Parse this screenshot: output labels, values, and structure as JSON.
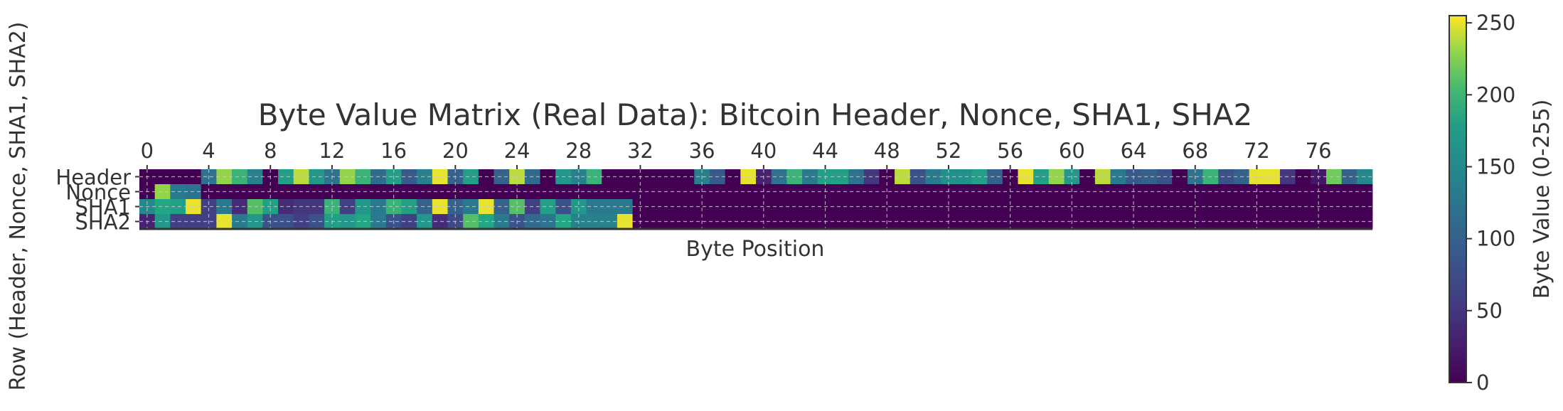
{
  "chart_data": {
    "type": "heatmap",
    "title": "Byte Value Matrix (Real Data): Bitcoin Header, Nonce, SHA1, SHA2",
    "xlabel": "Byte Position",
    "ylabel": "Row (Header, Nonce, SHA1, SHA2)",
    "rows": [
      "Header",
      "Nonce",
      "SHA1",
      "SHA2"
    ],
    "x_ticks": [
      "0",
      "4",
      "8",
      "12",
      "16",
      "20",
      "24",
      "28",
      "32",
      "36",
      "40",
      "44",
      "48",
      "52",
      "56",
      "60",
      "64",
      "68",
      "72",
      "76"
    ],
    "colorbar": {
      "label": "Byte Value (0-255)",
      "ticks": [
        "0",
        "50",
        "100",
        "150",
        "200",
        "250"
      ],
      "range": [
        0,
        255
      ],
      "colormap": "viridis"
    },
    "grid": true,
    "num_columns": 80,
    "values": [
      [
        0,
        0,
        0,
        0,
        120,
        230,
        200,
        140,
        0,
        180,
        240,
        170,
        120,
        230,
        200,
        110,
        180,
        90,
        140,
        250,
        100,
        180,
        0,
        100,
        240,
        110,
        0,
        170,
        140,
        200,
        0,
        0,
        0,
        0,
        0,
        0,
        140,
        90,
        0,
        250,
        30,
        120,
        200,
        130,
        180,
        180,
        120,
        50,
        0,
        240,
        80,
        130,
        160,
        160,
        180,
        100,
        0,
        250,
        180,
        230,
        170,
        0,
        240,
        130,
        90,
        100,
        80,
        0,
        120,
        200,
        80,
        100,
        250,
        250,
        50,
        0,
        20,
        220,
        100,
        150
      ],
      [
        0,
        230,
        130,
        120,
        0,
        0,
        0,
        0,
        0,
        0,
        0,
        0,
        0,
        0,
        0,
        0,
        0,
        0,
        0,
        0,
        0,
        0,
        0,
        0,
        0,
        0,
        0,
        0,
        0,
        0,
        0,
        0,
        0,
        0,
        0,
        0,
        0,
        0,
        0,
        0,
        0,
        0,
        0,
        0,
        0,
        0,
        0,
        0,
        0,
        0,
        0,
        0,
        0,
        0,
        0,
        0,
        0,
        0,
        0,
        0,
        0,
        0,
        0,
        0,
        0,
        0,
        0,
        0,
        0,
        0,
        0,
        0,
        0,
        0,
        0,
        0,
        0,
        0,
        0,
        0
      ],
      [
        150,
        190,
        180,
        250,
        60,
        130,
        40,
        210,
        180,
        40,
        50,
        50,
        200,
        60,
        170,
        130,
        200,
        180,
        100,
        250,
        100,
        130,
        250,
        100,
        210,
        60,
        180,
        80,
        170,
        130,
        130,
        130,
        0,
        0,
        0,
        0,
        0,
        0,
        0,
        0,
        0,
        0,
        0,
        0,
        0,
        0,
        0,
        0,
        0,
        0,
        0,
        0,
        0,
        0,
        0,
        0,
        0,
        0,
        0,
        0,
        0,
        0,
        0,
        0,
        0,
        0,
        0,
        0,
        0,
        0,
        0,
        0,
        0,
        0,
        0,
        0,
        0,
        0,
        0,
        0
      ],
      [
        30,
        170,
        60,
        60,
        60,
        250,
        130,
        170,
        80,
        80,
        60,
        80,
        180,
        170,
        190,
        130,
        80,
        60,
        170,
        40,
        70,
        210,
        190,
        130,
        80,
        110,
        120,
        190,
        140,
        140,
        140,
        250,
        0,
        0,
        0,
        0,
        0,
        0,
        0,
        0,
        0,
        0,
        0,
        0,
        0,
        0,
        0,
        0,
        0,
        0,
        0,
        0,
        0,
        0,
        0,
        0,
        0,
        0,
        0,
        0,
        0,
        0,
        0,
        0,
        0,
        0,
        0,
        0,
        0,
        0,
        0,
        0,
        0,
        0,
        0,
        0,
        0,
        0,
        0,
        0
      ]
    ]
  }
}
